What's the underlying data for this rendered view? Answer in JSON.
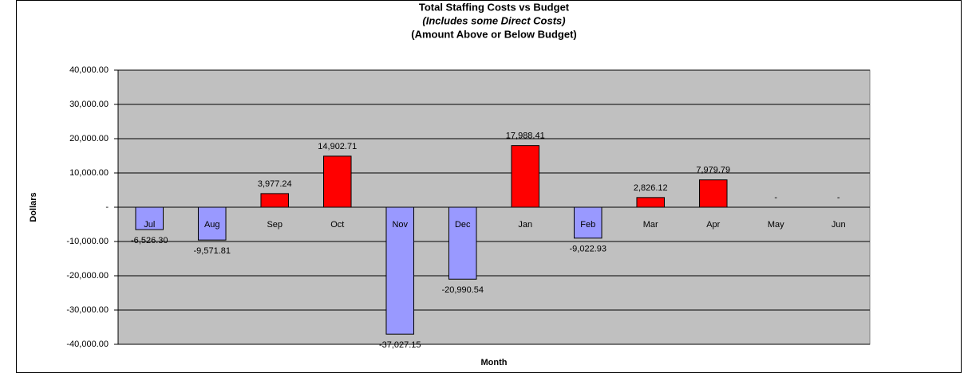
{
  "chart_data": {
    "type": "bar",
    "title": "Total Staffing Costs vs Budget",
    "subtitle": "(Includes some Direct Costs)",
    "annotation": "(Amount Above or Below Budget)",
    "x_label": "Month",
    "y_label": "Dollars",
    "categories": [
      "Jul",
      "Aug",
      "Sep",
      "Oct",
      "Nov",
      "Dec",
      "Jan",
      "Feb",
      "Mar",
      "Apr",
      "May",
      "Jun"
    ],
    "values": [
      -6526.3,
      -9571.81,
      3977.24,
      14902.71,
      -37027.15,
      -20990.54,
      17988.41,
      -9022.93,
      2826.12,
      7979.79,
      0,
      0
    ],
    "value_labels": [
      "-6,526.30",
      "-9,571.81",
      "3,977.24",
      "14,902.71",
      "-37,027.15",
      "-20,990.54",
      "17,988.41",
      "-9,022.93",
      "2,826.12",
      "7,979.79",
      "-",
      "-"
    ],
    "color": "#ff0000",
    "negative_color": "#9999ff",
    "ylim": [
      -40000,
      40000
    ],
    "yticks": [
      {
        "value": -40000,
        "label": "-40,000.00"
      },
      {
        "value": -30000,
        "label": "-30,000.00"
      },
      {
        "value": -20000,
        "label": "-20,000.00"
      },
      {
        "value": -10000,
        "label": "-10,000.00"
      },
      {
        "value": 0,
        "label": "-"
      },
      {
        "value": 10000,
        "label": "10,000.00"
      },
      {
        "value": 20000,
        "label": "20,000.00"
      },
      {
        "value": 30000,
        "label": "30,000.00"
      },
      {
        "value": 40000,
        "label": "40,000.00"
      }
    ],
    "grid": true
  }
}
